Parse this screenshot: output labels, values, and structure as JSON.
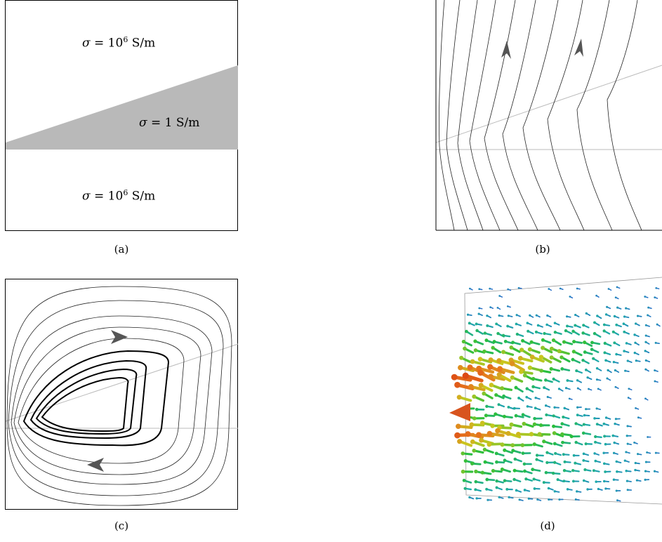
{
  "panel_a": {
    "caption": "(a)",
    "label_top": {
      "symbol": "σ",
      "equals": "=",
      "mantissa": "10",
      "exponent": "6",
      "unit": "S/m"
    },
    "label_middle": {
      "symbol": "σ",
      "equals": "=",
      "value": "1",
      "unit": "S/m"
    },
    "label_bottom": {
      "symbol": "σ",
      "equals": "=",
      "mantissa": "10",
      "exponent": "6",
      "unit": "S/m"
    },
    "colors": {
      "slab": "#b9b9b9",
      "background": "#ffffff"
    }
  },
  "panel_b": {
    "caption": "(b)"
  },
  "panel_c": {
    "caption": "(c)"
  },
  "panel_d": {
    "caption": "(d)"
  },
  "colors": {
    "arrow_marker": "#555555",
    "interface_line": "#bbbbbb"
  }
}
